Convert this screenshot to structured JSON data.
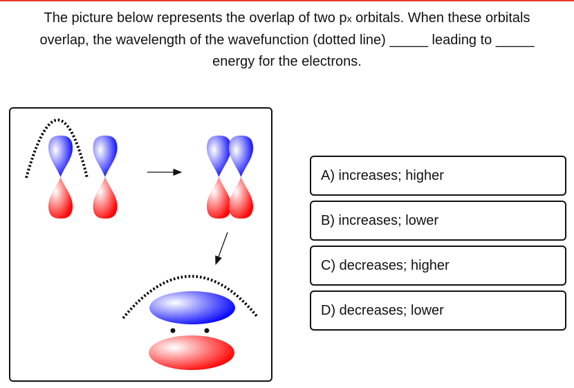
{
  "question": {
    "part1": "The picture below represents the overlap of two p",
    "subscript": "x",
    "part2": " orbitals. When these orbitals",
    "line2": "overlap, the wavelength of the wavefunction (dotted line) _____ leading to _____",
    "line3": "energy for the electrons."
  },
  "figure": {
    "colors": {
      "positive_lobe": "#0000ff",
      "negative_lobe": "#ff0000",
      "wavefunction": "#000000"
    }
  },
  "options": [
    {
      "label": "A) increases; higher"
    },
    {
      "label": "B) increases; lower"
    },
    {
      "label": "C) decreases; higher"
    },
    {
      "label": "D) decreases; lower"
    }
  ]
}
